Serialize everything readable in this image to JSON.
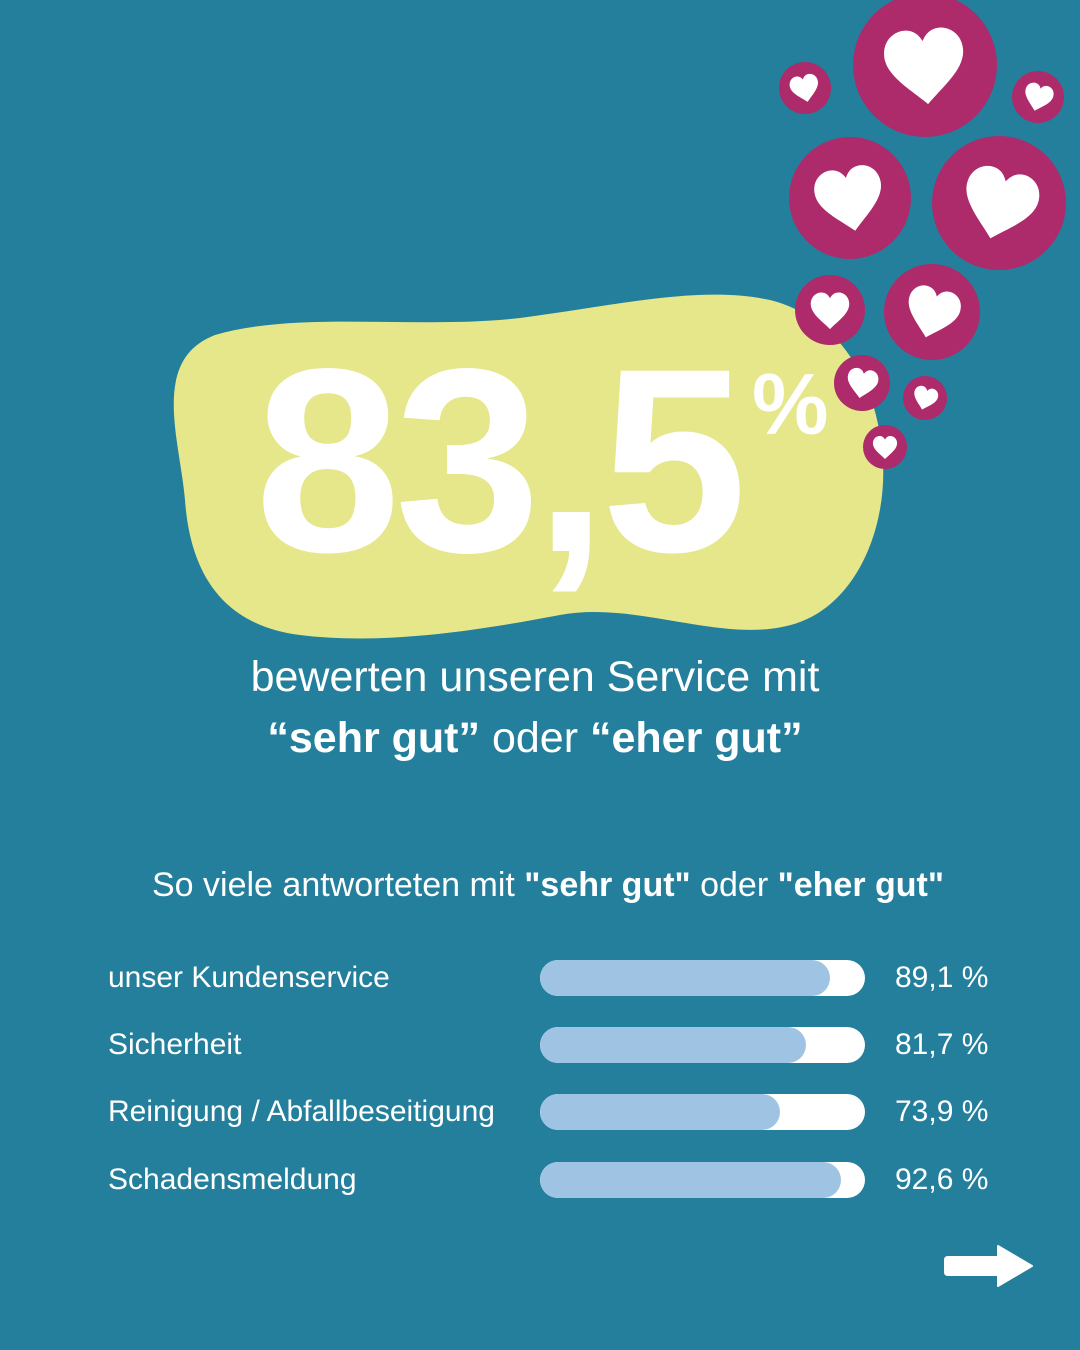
{
  "headline": {
    "value": "83,5",
    "unit": "%"
  },
  "subtitle": {
    "line1": "bewerten unseren Service mit",
    "q1": "“sehr gut”",
    "mid": " oder ",
    "q2": "“eher gut”"
  },
  "section": {
    "pre": "So viele antworteten mit ",
    "b1": "\"sehr gut\"",
    "mid": " oder ",
    "b2": "\"eher gut\""
  },
  "chart_data": {
    "type": "bar",
    "orientation": "horizontal",
    "categories": [
      "unser Kundenservice",
      "Sicherheit",
      "Reinigung / Abfallbeseitigung",
      "Schadensmeldung"
    ],
    "values": [
      89.1,
      81.7,
      73.9,
      92.6
    ],
    "value_labels": [
      "89,1 %",
      "81,7 %",
      "73,9 %",
      "92,6 %"
    ],
    "xlim": [
      0,
      100
    ],
    "title": "So viele antworteten mit \"sehr gut\" oder \"eher gut\""
  },
  "colors": {
    "background": "#237f9c",
    "blob": "#e5e78a",
    "bubble": "#ad2a6b",
    "bar_fill": "#9fc4e3",
    "bar_track": "#ffffff"
  },
  "icons": {
    "decor": "heart-icon",
    "next": "arrow-right-icon"
  }
}
